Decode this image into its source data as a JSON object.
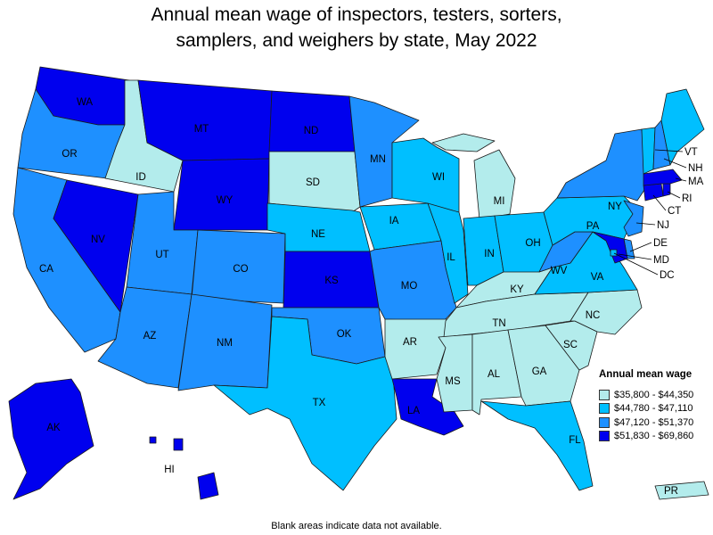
{
  "title_line1": "Annual mean wage of inspectors, testers, sorters,",
  "title_line2": "samplers, and weighers by state, May 2022",
  "legend": {
    "title": "Annual mean wage",
    "classes": [
      {
        "label": "$35,800 - $44,350",
        "color": "#b3ecec"
      },
      {
        "label": "$44,780 - $47,110",
        "color": "#00bfff"
      },
      {
        "label": "$47,120 - $51,370",
        "color": "#1e90ff"
      },
      {
        "label": "$51,830 - $69,860",
        "color": "#0000ee"
      }
    ]
  },
  "footnote": "Blank areas indicate data not available.",
  "states": {
    "WA": 3,
    "OR": 2,
    "CA": 2,
    "ID": 0,
    "NV": 3,
    "MT": 3,
    "WY": 3,
    "UT": 2,
    "AZ": 2,
    "CO": 2,
    "NM": 2,
    "ND": 3,
    "SD": 0,
    "NE": 1,
    "KS": 3,
    "OK": 2,
    "TX": 1,
    "MN": 2,
    "IA": 1,
    "MO": 2,
    "AR": 0,
    "LA": 3,
    "WI": 1,
    "IL": 1,
    "MI": 0,
    "IN": 1,
    "OH": 1,
    "KY": 0,
    "TN": 0,
    "MS": 0,
    "AL": 0,
    "GA": 0,
    "FL": 1,
    "SC": 0,
    "NC": 0,
    "VA": 1,
    "WV": 2,
    "PA": 1,
    "NY": 2,
    "NJ": 2,
    "DE": 2,
    "MD": 3,
    "DC": 1,
    "CT": 3,
    "RI": 3,
    "MA": 3,
    "VT": 1,
    "NH": 2,
    "ME": 1,
    "AK": 3,
    "HI": 3,
    "PR": 0
  }
}
